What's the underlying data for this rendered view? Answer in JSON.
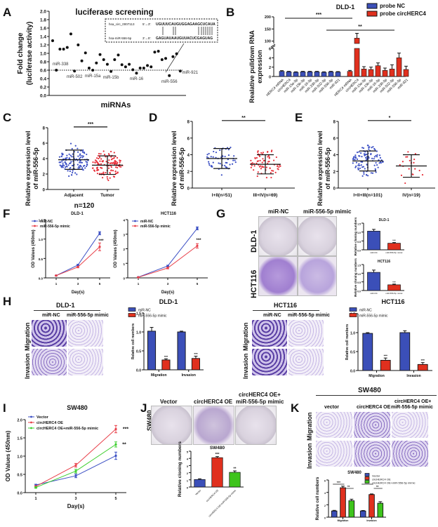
{
  "panels": {
    "A": "A",
    "B": "B",
    "C": "C",
    "D": "D",
    "E": "E",
    "F": "F",
    "G": "G",
    "H": "H",
    "I": "I",
    "J": "J",
    "K": "K"
  },
  "chart_data": [
    {
      "id": "A",
      "type": "scatter",
      "title": "luciferase screening",
      "xlabel": "miRNAs",
      "ylabel": "Fold change (luciferase activity)",
      "ylim": [
        0,
        2.0
      ],
      "yticks": [
        "0.0",
        "0.2",
        "0.4",
        "0.6",
        "0.8",
        "1.0",
        "1.2",
        "1.4",
        "1.6",
        "1.8",
        "2.0"
      ],
      "threshold": 0.6,
      "values": [
        1.3,
        0.6,
        1.1,
        1.1,
        1.14,
        1.46,
        0.58,
        1.2,
        0.82,
        1.01,
        0.65,
        0.6,
        0.77,
        0.97,
        0.85,
        0.74,
        0.57,
        0.85,
        0.96,
        0.73,
        0.68,
        0.74,
        0.61,
        0.53,
        0.65,
        0.65,
        0.71,
        0.68,
        1.03,
        1.05,
        0.85,
        0.88,
        0.47,
        0.92,
        0.99,
        0.58
      ],
      "annotations": [
        {
          "index": 1,
          "label": "miR-338"
        },
        {
          "index": 6,
          "label": "miR-502"
        },
        {
          "index": 11,
          "label": "miR-15a"
        },
        {
          "index": 16,
          "label": "miR-15b"
        },
        {
          "index": 23,
          "label": "miR-16"
        },
        {
          "index": 32,
          "label": "miR-556"
        },
        {
          "index": 35,
          "label": "miR-921"
        }
      ],
      "inset": {
        "row1_name": "hsa_circ_0007113",
        "row1_dir": "5'→3':",
        "row1_seq": "UGUUUCAUGUGGAGAAGCUCAUA",
        "row2_name": "hsa-miR-556-5p",
        "row2_dir": "3'→5':",
        "row2_seq": "GAGUAUAAUGUUACUCGAGUAG"
      }
    },
    {
      "id": "B",
      "type": "bar",
      "title": "DLD-1",
      "ylabel": "Realative pulldown RNA expression",
      "yticks_low": [
        "0",
        "2",
        "4",
        "6"
      ],
      "yticks_high": [
        "100",
        "150",
        "200"
      ],
      "categories": [
        "HERC4 mRNA",
        "circHERC4",
        "miR-15a-5p",
        "miR-15b-5p",
        "miR-16-5p",
        "miR-338-5p",
        "miR-502-5p",
        "miR-556-5p",
        "miR-921"
      ],
      "series": [
        {
          "name": "probe NC",
          "color": "#3b4fb8",
          "values": [
            1.1,
            1.0,
            0.9,
            1.0,
            1.0,
            1.0,
            0.9,
            1.0,
            0.95
          ],
          "errors": [
            0.15,
            0.1,
            0.1,
            0.1,
            0.1,
            0.1,
            0.1,
            0.1,
            0.1
          ]
        },
        {
          "name": "probe circHERC4",
          "color": "#e0301e",
          "values": [
            1.1,
            112,
            1.6,
            1.5,
            2.3,
            1.3,
            1.6,
            4.0,
            1.5
          ],
          "errors": [
            0.2,
            20,
            0.5,
            0.5,
            0.6,
            0.5,
            0.9,
            1.0,
            0.7
          ]
        }
      ],
      "significance": [
        {
          "label": "***"
        },
        {
          "label": "**"
        }
      ]
    },
    {
      "id": "C",
      "type": "scatter",
      "ylabel": "Relative expression level of miR-556-5p",
      "xlabel": "n=120",
      "ylim": [
        0,
        8
      ],
      "yticks": [
        "0",
        "2",
        "4",
        "6",
        "8"
      ],
      "groups": [
        {
          "name": "Adjacent",
          "color": "#3b4fc4",
          "mean": 3.85,
          "sd": 1.25,
          "n": 120,
          "min": 0.5,
          "max": 6.9
        },
        {
          "name": "Tumor",
          "color": "#e8303a",
          "mean": 3.15,
          "sd": 1.2,
          "n": 120,
          "min": 0.5,
          "max": 6.1
        }
      ],
      "significance": "***"
    },
    {
      "id": "D",
      "type": "scatter",
      "ylabel": "Relative expression level of miR-556-5p",
      "ylim": [
        0,
        8
      ],
      "yticks": [
        "0",
        "2",
        "4",
        "6",
        "8"
      ],
      "groups": [
        {
          "name": "I+II(n=51)",
          "color": "#3b4fc4",
          "mean": 3.55,
          "sd": 1.2,
          "n": 51,
          "min": 1.1,
          "max": 6.1
        },
        {
          "name": "III+IV(n=69)",
          "color": "#e8303a",
          "mean": 2.85,
          "sd": 1.15,
          "n": 69,
          "min": 0.6,
          "max": 5.9
        }
      ],
      "significance": "**"
    },
    {
      "id": "E",
      "type": "scatter",
      "ylabel": "Relative expression level of miR-556-5p",
      "ylim": [
        0,
        8
      ],
      "yticks": [
        "0",
        "2",
        "4",
        "6",
        "8"
      ],
      "groups": [
        {
          "name": "I+II+III(n=101)",
          "color": "#3b4fc4",
          "mean": 3.25,
          "sd": 1.2,
          "n": 101,
          "min": 0.7,
          "max": 6.1
        },
        {
          "name": "IV(n=19)",
          "color": "#e8303a",
          "mean": 2.65,
          "sd": 1.35,
          "n": 19,
          "min": 0.5,
          "max": 5.5
        }
      ],
      "significance": "*"
    },
    {
      "id": "F1",
      "type": "line",
      "title": "DLD-1",
      "xlabel": "Day(s)",
      "ylabel": "OD Values (450nm)",
      "x": [
        "1",
        "3",
        "5"
      ],
      "ylim": [
        0,
        1.5
      ],
      "yticks": [
        "0.0",
        "0.5",
        "1.0",
        "1.5"
      ],
      "series": [
        {
          "name": "miR-NC",
          "color": "#3b4fc4",
          "values": [
            0.06,
            0.33,
            1.15
          ],
          "errors": [
            0.01,
            0.02,
            0.04
          ]
        },
        {
          "name": "miR-556-5p mimic",
          "color": "#e8404a",
          "values": [
            0.06,
            0.28,
            0.8
          ],
          "errors": [
            0.01,
            0.02,
            0.1
          ]
        }
      ],
      "significance": "***"
    },
    {
      "id": "F2",
      "type": "line",
      "title": "HCT116",
      "xlabel": "Day(s)",
      "ylabel": "OD Values (450nm)",
      "x": [
        "1",
        "3",
        "5"
      ],
      "ylim": [
        0,
        4
      ],
      "yticks": [
        "0",
        "1",
        "2",
        "3",
        "4"
      ],
      "series": [
        {
          "name": "miR-NC",
          "color": "#3b4fc4",
          "values": [
            0.05,
            0.82,
            3.4
          ],
          "errors": [
            0.02,
            0.05,
            0.1
          ]
        },
        {
          "name": "miR-556-5p mimic",
          "color": "#e8404a",
          "values": [
            0.04,
            0.68,
            2.2
          ],
          "errors": [
            0.02,
            0.06,
            0.15
          ]
        }
      ],
      "significance": "***"
    },
    {
      "id": "G1",
      "type": "bar",
      "title": "DLD-1",
      "ylabel": "Relative cloning numbers",
      "categories": [
        "miR-NC",
        "miR-556-5p mimic"
      ],
      "values": [
        1.05,
        0.37
      ],
      "errors": [
        0.1,
        0.04
      ],
      "colors": [
        "#3b4fb8",
        "#e0301e"
      ],
      "ylim": [
        0,
        1.5
      ],
      "yticks": [
        "0.0",
        "0.5",
        "1.0",
        "1.5"
      ],
      "significance": [
        "",
        "***"
      ]
    },
    {
      "id": "G2",
      "type": "bar",
      "title": "HCT116",
      "ylabel": "Relative cloning numbers",
      "categories": [
        "miR-NC",
        "miR-556-5p mimic"
      ],
      "values": [
        1.05,
        0.33
      ],
      "errors": [
        0.13,
        0.04
      ],
      "colors": [
        "#3b4fb8",
        "#e0301e"
      ],
      "ylim": [
        0,
        1.5
      ],
      "yticks": [
        "0.0",
        "0.5",
        "1.0",
        "1.5"
      ],
      "significance": [
        "",
        "***"
      ]
    },
    {
      "id": "H1",
      "type": "bar",
      "title": "DLD-1",
      "ylabel": "Relative cell numbers",
      "categories": [
        "Migration",
        "Invasion"
      ],
      "ylim": [
        0,
        1.5
      ],
      "yticks": [
        "0.0",
        "0.5",
        "1.0",
        "1.5"
      ],
      "series": [
        {
          "name": "miR-NC",
          "color": "#3b4fb8",
          "values": [
            1.02,
            1.0
          ],
          "errors": [
            0.1,
            0.02
          ]
        },
        {
          "name": "miR-556-5p mimic",
          "color": "#e0301e",
          "values": [
            0.26,
            0.3
          ],
          "errors": [
            0.03,
            0.06
          ]
        }
      ],
      "significance": [
        "***",
        "***"
      ]
    },
    {
      "id": "H2",
      "type": "bar",
      "title": "HCT116",
      "ylabel": "Relative cell numbers",
      "categories": [
        "Migration",
        "Invasion"
      ],
      "ylim": [
        0,
        1.5
      ],
      "yticks": [
        "0.0",
        "0.5",
        "1.0",
        "1.5"
      ],
      "series": [
        {
          "name": "miR-NC",
          "color": "#3b4fb8",
          "values": [
            0.98,
            1.0
          ],
          "errors": [
            0.02,
            0.05
          ]
        },
        {
          "name": "miR-556-5p mimic",
          "color": "#e0301e",
          "values": [
            0.27,
            0.16
          ],
          "errors": [
            0.06,
            0.05
          ]
        }
      ],
      "significance": [
        "***",
        "***"
      ]
    },
    {
      "id": "I",
      "type": "line",
      "title": "SW480",
      "xlabel": "Day(s)",
      "ylabel": "OD Values (450nm)",
      "x": [
        "1",
        "3",
        "5"
      ],
      "ylim": [
        0,
        2.0
      ],
      "yticks": [
        "0.0",
        "0.5",
        "1.0",
        "1.5",
        "2.0"
      ],
      "series": [
        {
          "name": "Vector",
          "color": "#3b4fc4",
          "values": [
            0.21,
            0.46,
            1.01
          ],
          "errors": [
            0.02,
            0.05,
            0.1
          ]
        },
        {
          "name": "circHERC4 OE",
          "color": "#e8404a",
          "values": [
            0.17,
            0.75,
            1.74
          ],
          "errors": [
            0.02,
            0.05,
            0.1
          ]
        },
        {
          "name": "circHERC4 OE+miR-556-5p mimic",
          "color": "#3ecf2f",
          "values": [
            0.14,
            0.59,
            1.32
          ],
          "errors": [
            0.02,
            0.05,
            0.07
          ]
        }
      ],
      "significance": [
        "",
        "***",
        "**"
      ]
    },
    {
      "id": "J",
      "type": "bar",
      "title": "SW480",
      "ylabel": "Relative cloning numbers",
      "categories": [
        "Vector",
        "circHERC4 OE",
        "circHERC4 OE+miR-556-5p mimic"
      ],
      "values": [
        1.05,
        4.1,
        2.05
      ],
      "errors": [
        0.1,
        0.15,
        0.2
      ],
      "colors": [
        "#3b4fb8",
        "#e0301e",
        "#3ec41c"
      ],
      "ylim": [
        0,
        5
      ],
      "yticks": [
        "0",
        "1",
        "2",
        "3",
        "4",
        "5"
      ],
      "significance": [
        "",
        "***",
        "**"
      ]
    },
    {
      "id": "K",
      "type": "bar",
      "title": "SW480",
      "ylabel": "Relative cell numbers",
      "categories": [
        "Migration",
        "Invasion"
      ],
      "ylim": [
        0,
        6
      ],
      "yticks": [
        "0",
        "2",
        "4",
        "6"
      ],
      "series": [
        {
          "name": "Vector",
          "color": "#3b4fb8",
          "values": [
            1.0,
            1.0
          ],
          "errors": [
            0.1,
            0.08
          ]
        },
        {
          "name": "circHERC4 OE",
          "color": "#e0301e",
          "values": [
            4.75,
            3.65
          ],
          "errors": [
            0.25,
            0.1
          ]
        },
        {
          "name": "circHERC4 OE+miR-556-5p mimic",
          "color": "#3ec41c",
          "values": [
            2.65,
            2.25
          ],
          "errors": [
            0.25,
            0.25
          ]
        }
      ],
      "significance": [
        "***",
        "**"
      ]
    }
  ],
  "image_labels": {
    "G": {
      "cols": [
        "miR-NC",
        "miR-556-5p mimic"
      ],
      "rows": [
        "DLD-1",
        "HCT116"
      ]
    },
    "H1": {
      "title": "DLD-1",
      "cols": [
        "miR-NC",
        "miR-556-5p mimic"
      ],
      "rows": [
        "Migration",
        "Invasion"
      ]
    },
    "H2": {
      "title": "HCT116",
      "cols": [
        "miR-NC",
        "miR-556-5p mimic"
      ],
      "rows": [
        "Migration",
        "Invasion"
      ]
    },
    "J": {
      "cols": [
        "Vector",
        "circHERC4 OE",
        "circHERC4 OE+",
        "miR-556-5p mimic"
      ],
      "row": "SW480"
    },
    "K": {
      "title": "SW480",
      "cols": [
        "vector",
        "circHERC4 OE",
        "circHERC4 OE+",
        "miR-556-5p mimic"
      ],
      "rows": [
        "Migration",
        "Invasion"
      ]
    }
  }
}
